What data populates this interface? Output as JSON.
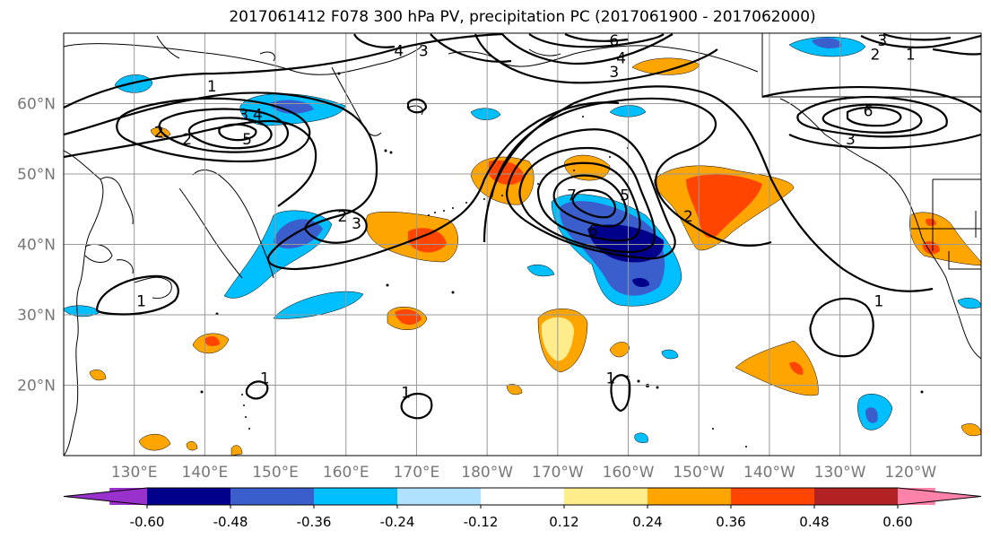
{
  "title": "2017061412 F078 300 hPa PV, precipitation PC (2017061900 - 2017062000)",
  "map": {
    "lon_range": [
      120,
      250
    ],
    "lat_range": [
      10,
      70
    ],
    "lat_ticks": [
      {
        "value": 20,
        "label": "20°N"
      },
      {
        "value": 30,
        "label": "30°N"
      },
      {
        "value": 40,
        "label": "40°N"
      },
      {
        "value": 50,
        "label": "50°N"
      },
      {
        "value": 60,
        "label": "60°N"
      }
    ],
    "lon_ticks": [
      {
        "value": 130,
        "label": "130°E"
      },
      {
        "value": 140,
        "label": "140°E"
      },
      {
        "value": 150,
        "label": "150°E"
      },
      {
        "value": 160,
        "label": "160°E"
      },
      {
        "value": 170,
        "label": "170°E"
      },
      {
        "value": 180,
        "label": "180°W"
      },
      {
        "value": 190,
        "label": "170°W"
      },
      {
        "value": 200,
        "label": "160°W"
      },
      {
        "value": 210,
        "label": "150°W"
      },
      {
        "value": 220,
        "label": "140°W"
      },
      {
        "value": 230,
        "label": "130°W"
      },
      {
        "value": 240,
        "label": "120°W"
      }
    ],
    "grid": true,
    "pv_contour_labels": [
      {
        "text": "1",
        "lon": 141,
        "lat": 62.5
      },
      {
        "text": "2",
        "lon": 137.5,
        "lat": 55
      },
      {
        "text": "3",
        "lon": 145.5,
        "lat": 58.5
      },
      {
        "text": "4",
        "lon": 147.5,
        "lat": 58.5
      },
      {
        "text": "5",
        "lon": 146,
        "lat": 55
      },
      {
        "text": "2",
        "lon": 159.5,
        "lat": 44
      },
      {
        "text": "3",
        "lon": 161.5,
        "lat": 43
      },
      {
        "text": "4",
        "lon": 167.5,
        "lat": 67.5
      },
      {
        "text": "3",
        "lon": 171,
        "lat": 67.5
      },
      {
        "text": "6",
        "lon": 198,
        "lat": 69
      },
      {
        "text": "4",
        "lon": 199,
        "lat": 66.5
      },
      {
        "text": "3",
        "lon": 198,
        "lat": 64.5
      },
      {
        "text": "7",
        "lon": 192,
        "lat": 47
      },
      {
        "text": "6",
        "lon": 195,
        "lat": 42
      },
      {
        "text": "5",
        "lon": 199.5,
        "lat": 47
      },
      {
        "text": "2",
        "lon": 208.5,
        "lat": 44
      },
      {
        "text": "1",
        "lon": 235.5,
        "lat": 32
      },
      {
        "text": "1",
        "lon": 131,
        "lat": 32
      },
      {
        "text": "1",
        "lon": 148.5,
        "lat": 21
      },
      {
        "text": "1",
        "lon": 168.5,
        "lat": 19
      },
      {
        "text": "1",
        "lon": 197.5,
        "lat": 21
      },
      {
        "text": "6",
        "lon": 234,
        "lat": 59
      },
      {
        "text": "3",
        "lon": 231.5,
        "lat": 55
      },
      {
        "text": "2",
        "lon": 235,
        "lat": 67
      },
      {
        "text": "3",
        "lon": 236,
        "lat": 69
      },
      {
        "text": "1",
        "lon": 240,
        "lat": 67
      },
      {
        "text": "2",
        "lon": 133.5,
        "lat": 56
      }
    ]
  },
  "colorbar": {
    "colors": [
      "#9932cc",
      "#00008b",
      "#3a5fcd",
      "#00bfff",
      "#b0e2ff",
      "#ffffff",
      "#ffec8b",
      "#ffa500",
      "#ff4500",
      "#b22222",
      "#ff82ab"
    ],
    "tick_labels": [
      "-0.60",
      "-0.48",
      "-0.36",
      "-0.24",
      "-0.12",
      "0.12",
      "0.24",
      "0.36",
      "0.48",
      "0.60"
    ]
  }
}
